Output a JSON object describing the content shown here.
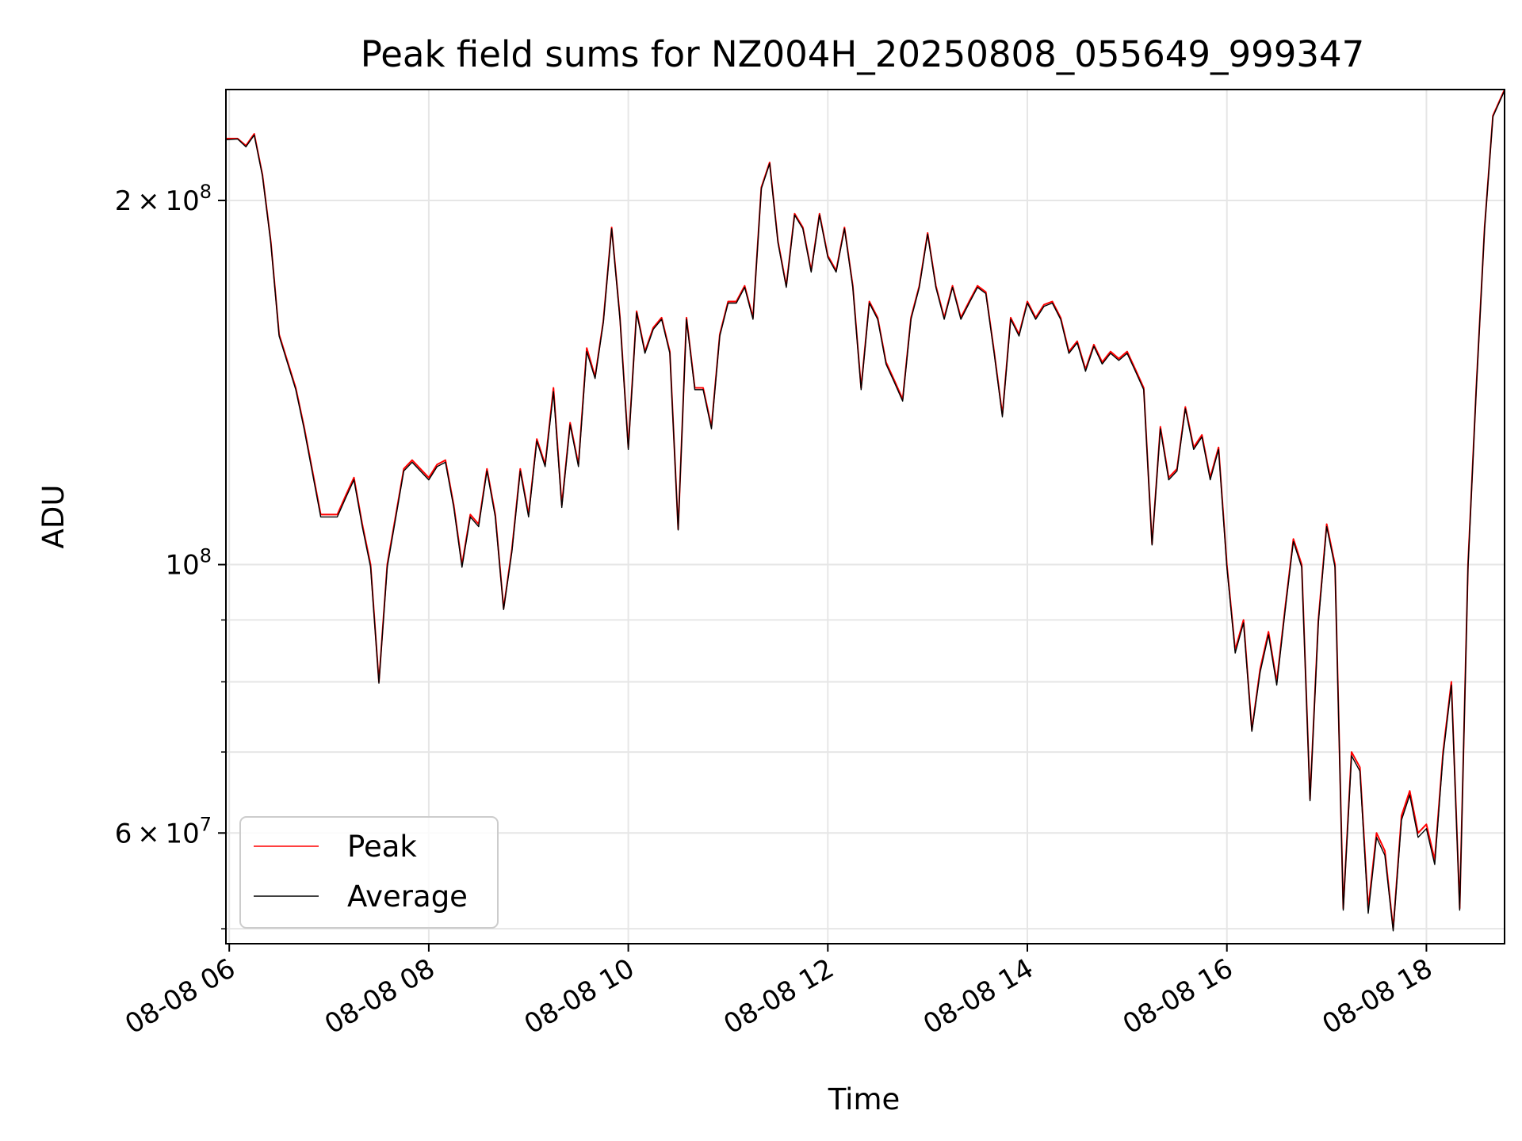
{
  "chart_data": {
    "type": "line",
    "title": "Peak field sums for NZ004H_20250808_055649_999347",
    "xlabel": "Time",
    "ylabel": "ADU",
    "yscale": "log",
    "xlim": [
      "2025-08-08 05:58",
      "2025-08-08 18:47"
    ],
    "ylim": [
      48600000,
      247000000
    ],
    "grid": true,
    "legend_position": "lower-left",
    "colors": {
      "Peak": "#ff0000",
      "Average": "#000000"
    },
    "x_ticks": [
      {
        "value": "2025-08-08 06:00",
        "label": "08-08 06"
      },
      {
        "value": "2025-08-08 08:00",
        "label": "08-08 08"
      },
      {
        "value": "2025-08-08 10:00",
        "label": "08-08 10"
      },
      {
        "value": "2025-08-08 12:00",
        "label": "08-08 12"
      },
      {
        "value": "2025-08-08 14:00",
        "label": "08-08 14"
      },
      {
        "value": "2025-08-08 16:00",
        "label": "08-08 16"
      },
      {
        "value": "2025-08-08 18:00",
        "label": "08-08 18"
      }
    ],
    "y_major_ticks": [
      {
        "value": 60000000,
        "label_mantissa": "6",
        "label_exponent": "7"
      },
      {
        "value": 100000000,
        "label_mantissa": "",
        "label_exponent": "8"
      },
      {
        "value": 200000000,
        "label_mantissa": "2",
        "label_exponent": "8"
      }
    ],
    "y_minor_ticks": [
      50000000,
      70000000,
      80000000,
      90000000
    ],
    "x": [
      "2025-08-08 05:58",
      "2025-08-08 06:05",
      "2025-08-08 06:10",
      "2025-08-08 06:15",
      "2025-08-08 06:20",
      "2025-08-08 06:25",
      "2025-08-08 06:30",
      "2025-08-08 06:40",
      "2025-08-08 06:45",
      "2025-08-08 06:55",
      "2025-08-08 07:05",
      "2025-08-08 07:10",
      "2025-08-08 07:15",
      "2025-08-08 07:20",
      "2025-08-08 07:25",
      "2025-08-08 07:30",
      "2025-08-08 07:35",
      "2025-08-08 07:45",
      "2025-08-08 07:50",
      "2025-08-08 08:00",
      "2025-08-08 08:05",
      "2025-08-08 08:10",
      "2025-08-08 08:15",
      "2025-08-08 08:20",
      "2025-08-08 08:25",
      "2025-08-08 08:30",
      "2025-08-08 08:35",
      "2025-08-08 08:40",
      "2025-08-08 08:45",
      "2025-08-08 08:50",
      "2025-08-08 08:55",
      "2025-08-08 09:00",
      "2025-08-08 09:05",
      "2025-08-08 09:10",
      "2025-08-08 09:15",
      "2025-08-08 09:20",
      "2025-08-08 09:25",
      "2025-08-08 09:30",
      "2025-08-08 09:35",
      "2025-08-08 09:40",
      "2025-08-08 09:45",
      "2025-08-08 09:50",
      "2025-08-08 09:55",
      "2025-08-08 10:00",
      "2025-08-08 10:05",
      "2025-08-08 10:10",
      "2025-08-08 10:15",
      "2025-08-08 10:20",
      "2025-08-08 10:25",
      "2025-08-08 10:30",
      "2025-08-08 10:35",
      "2025-08-08 10:40",
      "2025-08-08 10:45",
      "2025-08-08 10:50",
      "2025-08-08 10:55",
      "2025-08-08 11:00",
      "2025-08-08 11:05",
      "2025-08-08 11:10",
      "2025-08-08 11:15",
      "2025-08-08 11:20",
      "2025-08-08 11:25",
      "2025-08-08 11:30",
      "2025-08-08 11:35",
      "2025-08-08 11:40",
      "2025-08-08 11:45",
      "2025-08-08 11:50",
      "2025-08-08 11:55",
      "2025-08-08 12:00",
      "2025-08-08 12:05",
      "2025-08-08 12:10",
      "2025-08-08 12:15",
      "2025-08-08 12:20",
      "2025-08-08 12:25",
      "2025-08-08 12:30",
      "2025-08-08 12:35",
      "2025-08-08 12:40",
      "2025-08-08 12:45",
      "2025-08-08 12:50",
      "2025-08-08 12:55",
      "2025-08-08 13:00",
      "2025-08-08 13:05",
      "2025-08-08 13:10",
      "2025-08-08 13:15",
      "2025-08-08 13:20",
      "2025-08-08 13:25",
      "2025-08-08 13:30",
      "2025-08-08 13:35",
      "2025-08-08 13:40",
      "2025-08-08 13:45",
      "2025-08-08 13:50",
      "2025-08-08 13:55",
      "2025-08-08 14:00",
      "2025-08-08 14:05",
      "2025-08-08 14:10",
      "2025-08-08 14:15",
      "2025-08-08 14:20",
      "2025-08-08 14:25",
      "2025-08-08 14:30",
      "2025-08-08 14:35",
      "2025-08-08 14:40",
      "2025-08-08 14:45",
      "2025-08-08 14:50",
      "2025-08-08 14:55",
      "2025-08-08 15:00",
      "2025-08-08 15:05",
      "2025-08-08 15:10",
      "2025-08-08 15:15",
      "2025-08-08 15:20",
      "2025-08-08 15:25",
      "2025-08-08 15:30",
      "2025-08-08 15:35",
      "2025-08-08 15:40",
      "2025-08-08 15:45",
      "2025-08-08 15:50",
      "2025-08-08 15:55",
      "2025-08-08 16:00",
      "2025-08-08 16:05",
      "2025-08-08 16:10",
      "2025-08-08 16:15",
      "2025-08-08 16:20",
      "2025-08-08 16:25",
      "2025-08-08 16:30",
      "2025-08-08 16:35",
      "2025-08-08 16:40",
      "2025-08-08 16:45",
      "2025-08-08 16:50",
      "2025-08-08 16:55",
      "2025-08-08 17:00",
      "2025-08-08 17:05",
      "2025-08-08 17:10",
      "2025-08-08 17:15",
      "2025-08-08 17:20",
      "2025-08-08 17:25",
      "2025-08-08 17:30",
      "2025-08-08 17:35",
      "2025-08-08 17:40",
      "2025-08-08 17:45",
      "2025-08-08 17:50",
      "2025-08-08 17:55",
      "2025-08-08 18:00",
      "2025-08-08 18:05",
      "2025-08-08 18:10",
      "2025-08-08 18:15",
      "2025-08-08 18:20",
      "2025-08-08 18:25",
      "2025-08-08 18:30",
      "2025-08-08 18:35",
      "2025-08-08 18:40",
      "2025-08-08 18:47"
    ],
    "series": [
      {
        "name": "Peak",
        "values": [
          225000000,
          225000000,
          222000000,
          227000000,
          210000000,
          185000000,
          155000000,
          140000000,
          130000000,
          110000000,
          110000000,
          114000000,
          118000000,
          108000000,
          100000000,
          80000000,
          100000000,
          120000000,
          122000000,
          118000000,
          121000000,
          122000000,
          112000000,
          100000000,
          110000000,
          108000000,
          120000000,
          110000000,
          92000000,
          103000000,
          120000000,
          110000000,
          127000000,
          121000000,
          140000000,
          112000000,
          131000000,
          121000000,
          151000000,
          143000000,
          159000000,
          190000000,
          160000000,
          125000000,
          162000000,
          150000000,
          157000000,
          160000000,
          150000000,
          107000000,
          160000000,
          140000000,
          140000000,
          130000000,
          155000000,
          165000000,
          165000000,
          170000000,
          160000000,
          205000000,
          215000000,
          185000000,
          170000000,
          195000000,
          190000000,
          175000000,
          195000000,
          180000000,
          175000000,
          190000000,
          170000000,
          140000000,
          165000000,
          160000000,
          147000000,
          142000000,
          137000000,
          160000000,
          170000000,
          188000000,
          170000000,
          160000000,
          170000000,
          160000000,
          165000000,
          170000000,
          168000000,
          150000000,
          133000000,
          160000000,
          155000000,
          165000000,
          160000000,
          164000000,
          165000000,
          160000000,
          150000000,
          153000000,
          145000000,
          152000000,
          147000000,
          150000000,
          148000000,
          150000000,
          145000000,
          140000000,
          104000000,
          130000000,
          118000000,
          120000000,
          135000000,
          125000000,
          128000000,
          118000000,
          125000000,
          100000000,
          85000000,
          90000000,
          73000000,
          82000000,
          88000000,
          80000000,
          92000000,
          105000000,
          100000000,
          64000000,
          90000000,
          108000000,
          100000000,
          52000000,
          70000000,
          68000000,
          52000000,
          60000000,
          58000000,
          50000000,
          62000000,
          65000000,
          60000000,
          61000000,
          57000000,
          70000000,
          80000000,
          52000000,
          100000000,
          140000000,
          190000000,
          235000000,
          247000000
        ]
      },
      {
        "name": "Average",
        "values": [
          224500000,
          224800000,
          221500000,
          226500000,
          209500000,
          184500000,
          154500000,
          139500000,
          129500000,
          109500000,
          109500000,
          113500000,
          117500000,
          107500000,
          99500000,
          79800000,
          99500000,
          119500000,
          121500000,
          117500000,
          120500000,
          121500000,
          111500000,
          99500000,
          109500000,
          107500000,
          119500000,
          109500000,
          91800000,
          102500000,
          119500000,
          109500000,
          126500000,
          120500000,
          139000000,
          111500000,
          130500000,
          120500000,
          150000000,
          142500000,
          158500000,
          189500000,
          159500000,
          124500000,
          161500000,
          149500000,
          156500000,
          159500000,
          149500000,
          106800000,
          159500000,
          139500000,
          139500000,
          129500000,
          154500000,
          164500000,
          164500000,
          169500000,
          159500000,
          204500000,
          214500000,
          184500000,
          169500000,
          194500000,
          189500000,
          174500000,
          194500000,
          179500000,
          174500000,
          189500000,
          169500000,
          139500000,
          164500000,
          159500000,
          146500000,
          141500000,
          136500000,
          159500000,
          169500000,
          187500000,
          169500000,
          159500000,
          169500000,
          159500000,
          164500000,
          169500000,
          167500000,
          149500000,
          132500000,
          159500000,
          154500000,
          164500000,
          159500000,
          163500000,
          164500000,
          159500000,
          149500000,
          152500000,
          144500000,
          151500000,
          146500000,
          149500000,
          147500000,
          149500000,
          144500000,
          139500000,
          103800000,
          129500000,
          117500000,
          119500000,
          134500000,
          124500000,
          127500000,
          117500000,
          124500000,
          99500000,
          84500000,
          89500000,
          72800000,
          81500000,
          87500000,
          79500000,
          91500000,
          104500000,
          99500000,
          63800000,
          89500000,
          107500000,
          99500000,
          51800000,
          69500000,
          67500000,
          51500000,
          59500000,
          57500000,
          49800000,
          61500000,
          64500000,
          59500000,
          60500000,
          56500000,
          69500000,
          79500000,
          51800000,
          99500000,
          139500000,
          189500000,
          234500000,
          246500000
        ]
      }
    ]
  }
}
